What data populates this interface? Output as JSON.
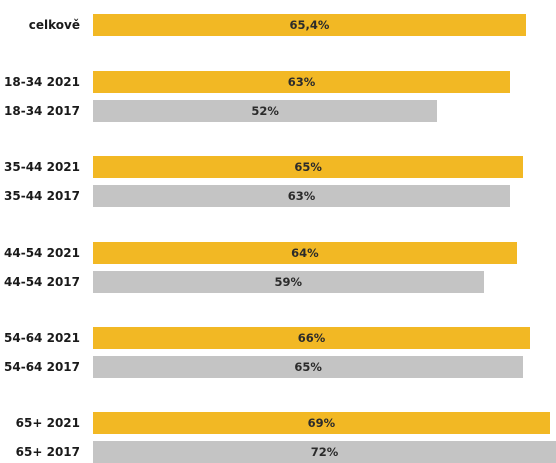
{
  "chart_data": {
    "type": "bar",
    "orientation": "horizontal",
    "title": "",
    "xlabel": "",
    "ylabel": "",
    "grid": false,
    "legend": "none",
    "colors": {
      "2021": "#F2B824",
      "2017": "#C4C4C4",
      "overall": "#F2B824"
    },
    "categories": [
      "celkově",
      "18-34 2021",
      "18-34 2017",
      "35-44 2021",
      "35-44 2017",
      "44-54 2021",
      "44-54 2017",
      "54-64 2021",
      "54-64 2017",
      "65+ 2021",
      "65+ 2017"
    ],
    "values": [
      65.4,
      63,
      52,
      65,
      63,
      64,
      59,
      66,
      65,
      69,
      72
    ],
    "value_labels": [
      "65,4%",
      "63%",
      "52%",
      "65%",
      "63%",
      "64%",
      "59%",
      "66%",
      "65%",
      "69%",
      "72%"
    ],
    "series_type": [
      "overall",
      "2021",
      "2017",
      "2021",
      "2017",
      "2021",
      "2017",
      "2021",
      "2017",
      "2021",
      "2017"
    ]
  }
}
